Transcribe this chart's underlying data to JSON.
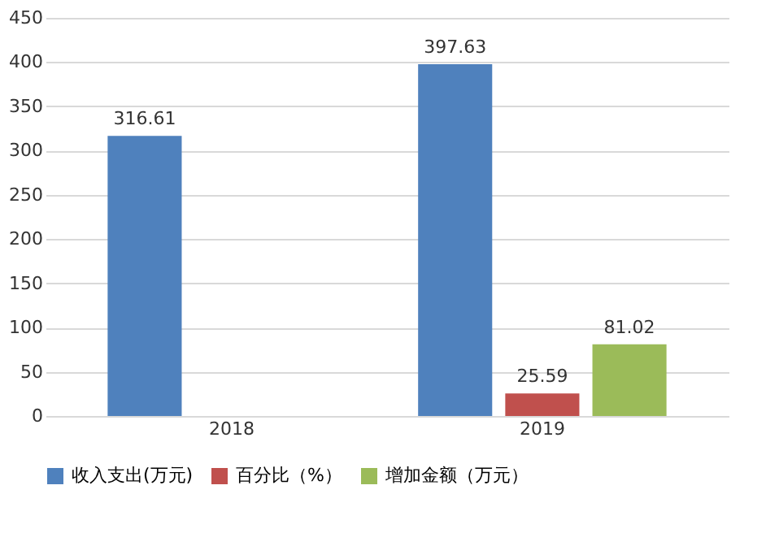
{
  "chart_data": {
    "type": "bar",
    "categories": [
      "2018",
      "2019"
    ],
    "series": [
      {
        "name": "收入支出(万元)",
        "color": "#4f81bd",
        "values": [
          316.61,
          397.63
        ]
      },
      {
        "name": "百分比（%）",
        "color": "#c0504d",
        "values": [
          null,
          25.59
        ]
      },
      {
        "name": "增加金额（万元）",
        "color": "#9bbb59",
        "values": [
          null,
          81.02
        ]
      }
    ],
    "ylim": [
      0,
      450
    ],
    "yticks": [
      0,
      50,
      100,
      150,
      200,
      250,
      300,
      350,
      400,
      450
    ],
    "grid": "y",
    "legend": "bottom",
    "data_labels": true
  }
}
